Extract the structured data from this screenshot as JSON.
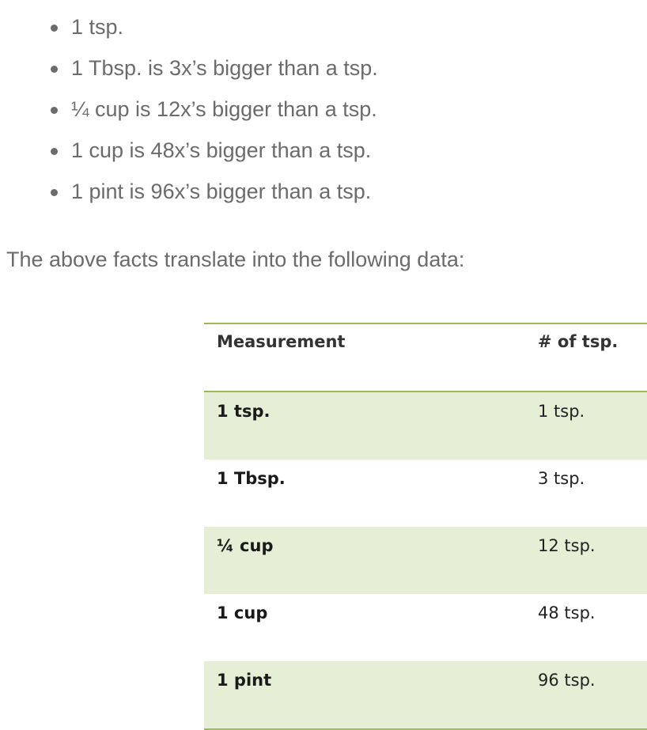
{
  "bullets": [
    "1 tsp.",
    "1 Tbsp. is 3x’s bigger than a tsp.",
    "¼ cup is 12x’s bigger than a tsp.",
    "1 cup is 48x’s bigger than a tsp.",
    "1 pint is 96x’s bigger than a tsp."
  ],
  "intro": "The above facts translate into the following data:",
  "table": {
    "headers": [
      "Measurement",
      "# of tsp."
    ],
    "rows": [
      {
        "measurement": "1 tsp.",
        "tsp": "1 tsp."
      },
      {
        "measurement": "1 Tbsp.",
        "tsp": "3 tsp."
      },
      {
        "measurement": "¼ cup",
        "tsp": "12 tsp."
      },
      {
        "measurement": "1 cup",
        "tsp": "48 tsp."
      },
      {
        "measurement": "1 pint",
        "tsp": "96 tsp."
      }
    ]
  },
  "colors": {
    "body_text": "#6b6b6b",
    "table_accent": "#9bbb59",
    "table_shade": "#e6eed5"
  }
}
